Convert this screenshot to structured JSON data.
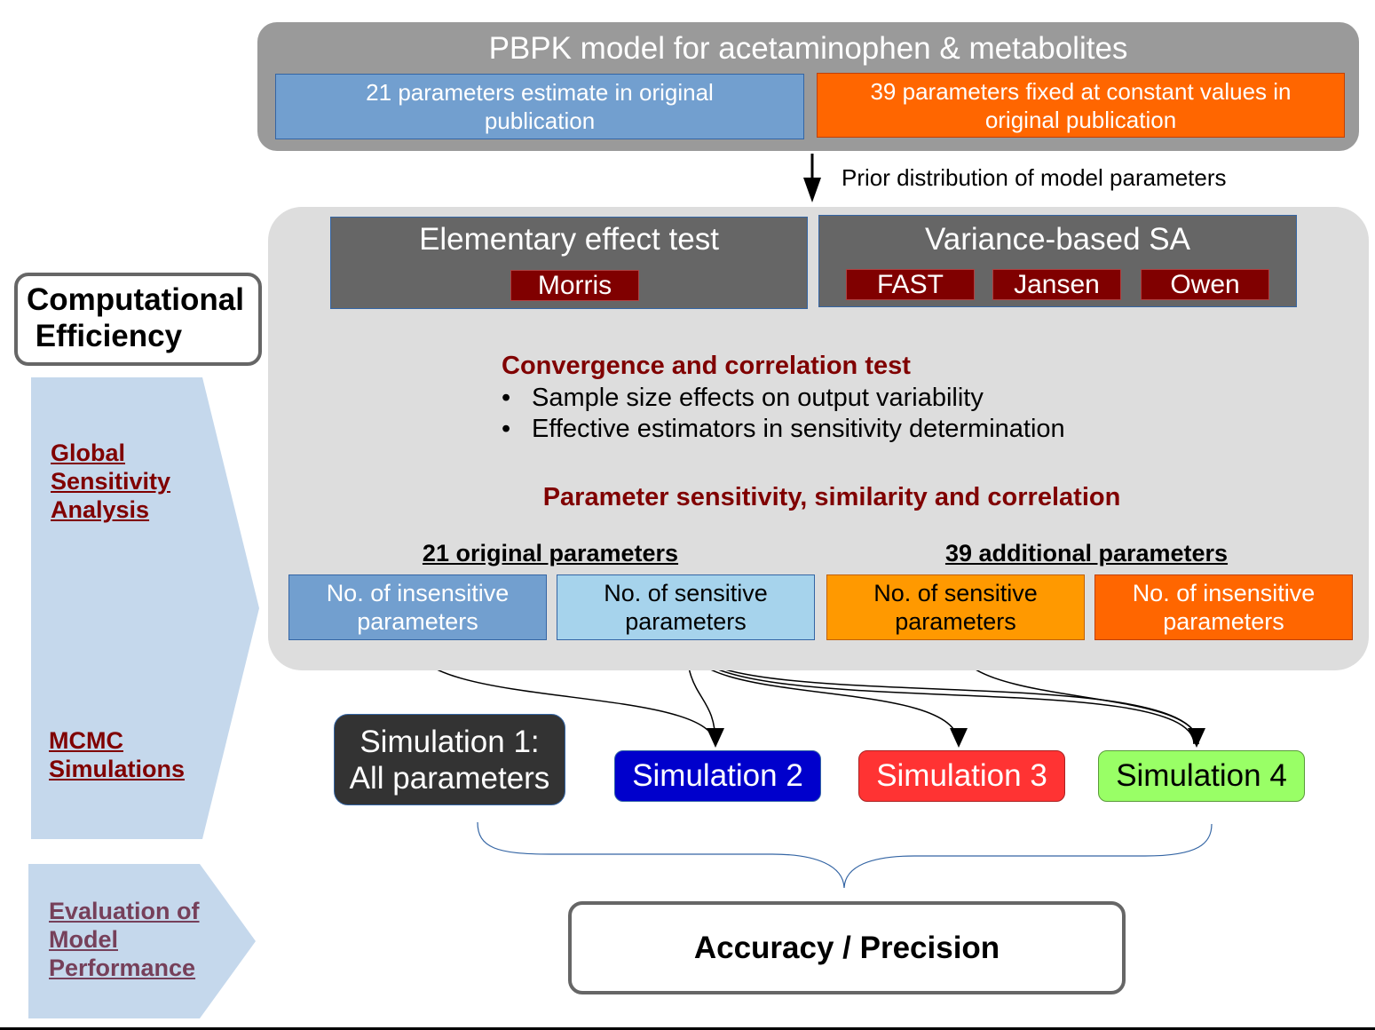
{
  "pbpk": {
    "title": "PBPK model for acetaminophen & metabolites",
    "estimated": "21 parameters estimate in original publication",
    "fixed": "39 parameters fixed at constant values in original publication"
  },
  "prior_label": "Prior distribution of model parameters",
  "elementary_effect": {
    "title": "Elementary effect test",
    "methods": [
      "Morris"
    ]
  },
  "variance_based": {
    "title": "Variance-based SA",
    "methods": [
      "FAST",
      "Jansen",
      "Owen"
    ]
  },
  "convergence": {
    "title": "Convergence and correlation test",
    "bullet_char": "•",
    "bullets": [
      "Sample size effects on output variability",
      "Effective estimators in sensitivity determination"
    ]
  },
  "parameter_title": "Parameter sensitivity, similarity and correlation",
  "groups": {
    "original": "21 original parameters",
    "additional": "39 additional parameters"
  },
  "boxes": {
    "orig_insensitive": "No. of insensitive parameters",
    "orig_sensitive": "No. of sensitive parameters",
    "add_sensitive": "No. of sensitive parameters",
    "add_insensitive": "No. of insensitive parameters"
  },
  "simulations": {
    "sim1_line1": "Simulation 1:",
    "sim1_line2": "All parameters",
    "sim2": "Simulation 2",
    "sim3": "Simulation 3",
    "sim4": "Simulation 4"
  },
  "accuracy": "Accuracy / Precision",
  "left": {
    "computational": [
      "Computational",
      " Efficiency"
    ],
    "gsa": [
      "Global",
      "Sensitivity",
      "Analysis"
    ],
    "mcmc": [
      "MCMC",
      "Simulations"
    ],
    "evaluation": [
      "Evaluation of",
      "Model",
      "Performance"
    ]
  },
  "colors": {
    "estimated": "#729fcf",
    "fixed": "#ff6600",
    "method_box": "#800000",
    "heading_text": "#800000",
    "sim2": "#0000cc",
    "sim3": "#ff3333",
    "sim4": "#99ff66",
    "side_chevron": "#c5d8ec"
  }
}
